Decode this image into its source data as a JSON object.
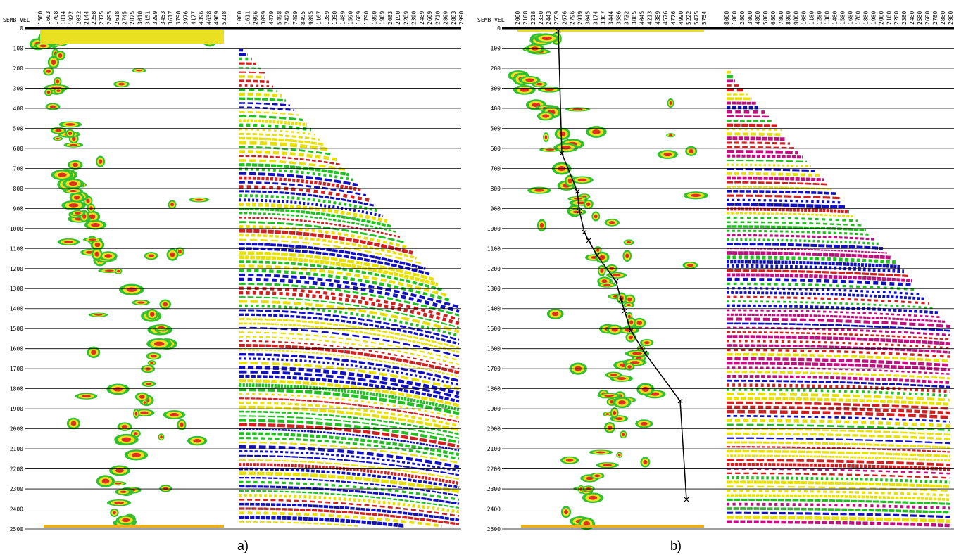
{
  "panels": [
    {
      "axis_title": "SEMB_VEL",
      "semblance_ticks": [
        "1500",
        "1603",
        "1708",
        "1814",
        "1922",
        "2032",
        "2144",
        "2258",
        "2375",
        "2495",
        "2618",
        "2745",
        "2875",
        "3010",
        "3151",
        "3299",
        "3453",
        "3617",
        "3790",
        "3976",
        "4177",
        "4396",
        "4638",
        "4909",
        "5218"
      ],
      "gather_ticks": [
        "1000",
        "1611",
        "2096",
        "3099",
        "4479",
        "5498",
        "7429",
        "7499",
        "8495",
        "9895",
        "1167",
        "1289",
        "1390",
        "1489",
        "1590",
        "1689",
        "1790",
        "1890",
        "1989",
        "2083",
        "2190",
        "2289",
        "2390",
        "2489",
        "2609",
        "2710",
        "2809",
        "2883",
        "2990"
      ],
      "time_labels": [
        "0",
        "100",
        "200",
        "300",
        "400",
        "500",
        "600",
        "700",
        "800",
        "900",
        "1000",
        "1100",
        "1200",
        "1300",
        "1400",
        "1500",
        "1600",
        "1700",
        "1800",
        "1900",
        "2000",
        "2100",
        "2200",
        "2300",
        "2400",
        "2500"
      ],
      "caption": "a)"
    },
    {
      "axis_title": "SEMB_VEL",
      "semblance_ticks": [
        "2000",
        "2108",
        "2218",
        "2330",
        "2443",
        "2559",
        "2676",
        "2796",
        "2919",
        "3045",
        "3174",
        "3307",
        "3444",
        "3586",
        "3732",
        "3885",
        "4045",
        "4213",
        "4389",
        "4576",
        "4776",
        "4990",
        "5222",
        "5475",
        "5754"
      ],
      "gather_ticks": [
        "8000",
        "1800",
        "2800",
        "3800",
        "4800",
        "5800",
        "6800",
        "7800",
        "8800",
        "9800",
        "1080",
        "1180",
        "1280",
        "1380",
        "1480",
        "1580",
        "1680",
        "1780",
        "1880",
        "1980",
        "2080",
        "2180",
        "2280",
        "2380",
        "2480",
        "2580",
        "2680",
        "2780",
        "2880",
        "2980"
      ],
      "time_labels": [
        "0",
        "100",
        "200",
        "300",
        "400",
        "500",
        "600",
        "700",
        "800",
        "900",
        "1000",
        "1100",
        "1200",
        "1300",
        "1400",
        "1500",
        "1600",
        "1700",
        "1800",
        "1900",
        "2000",
        "2100",
        "2200",
        "2300",
        "2400",
        "2500"
      ],
      "caption": "b)"
    }
  ]
}
